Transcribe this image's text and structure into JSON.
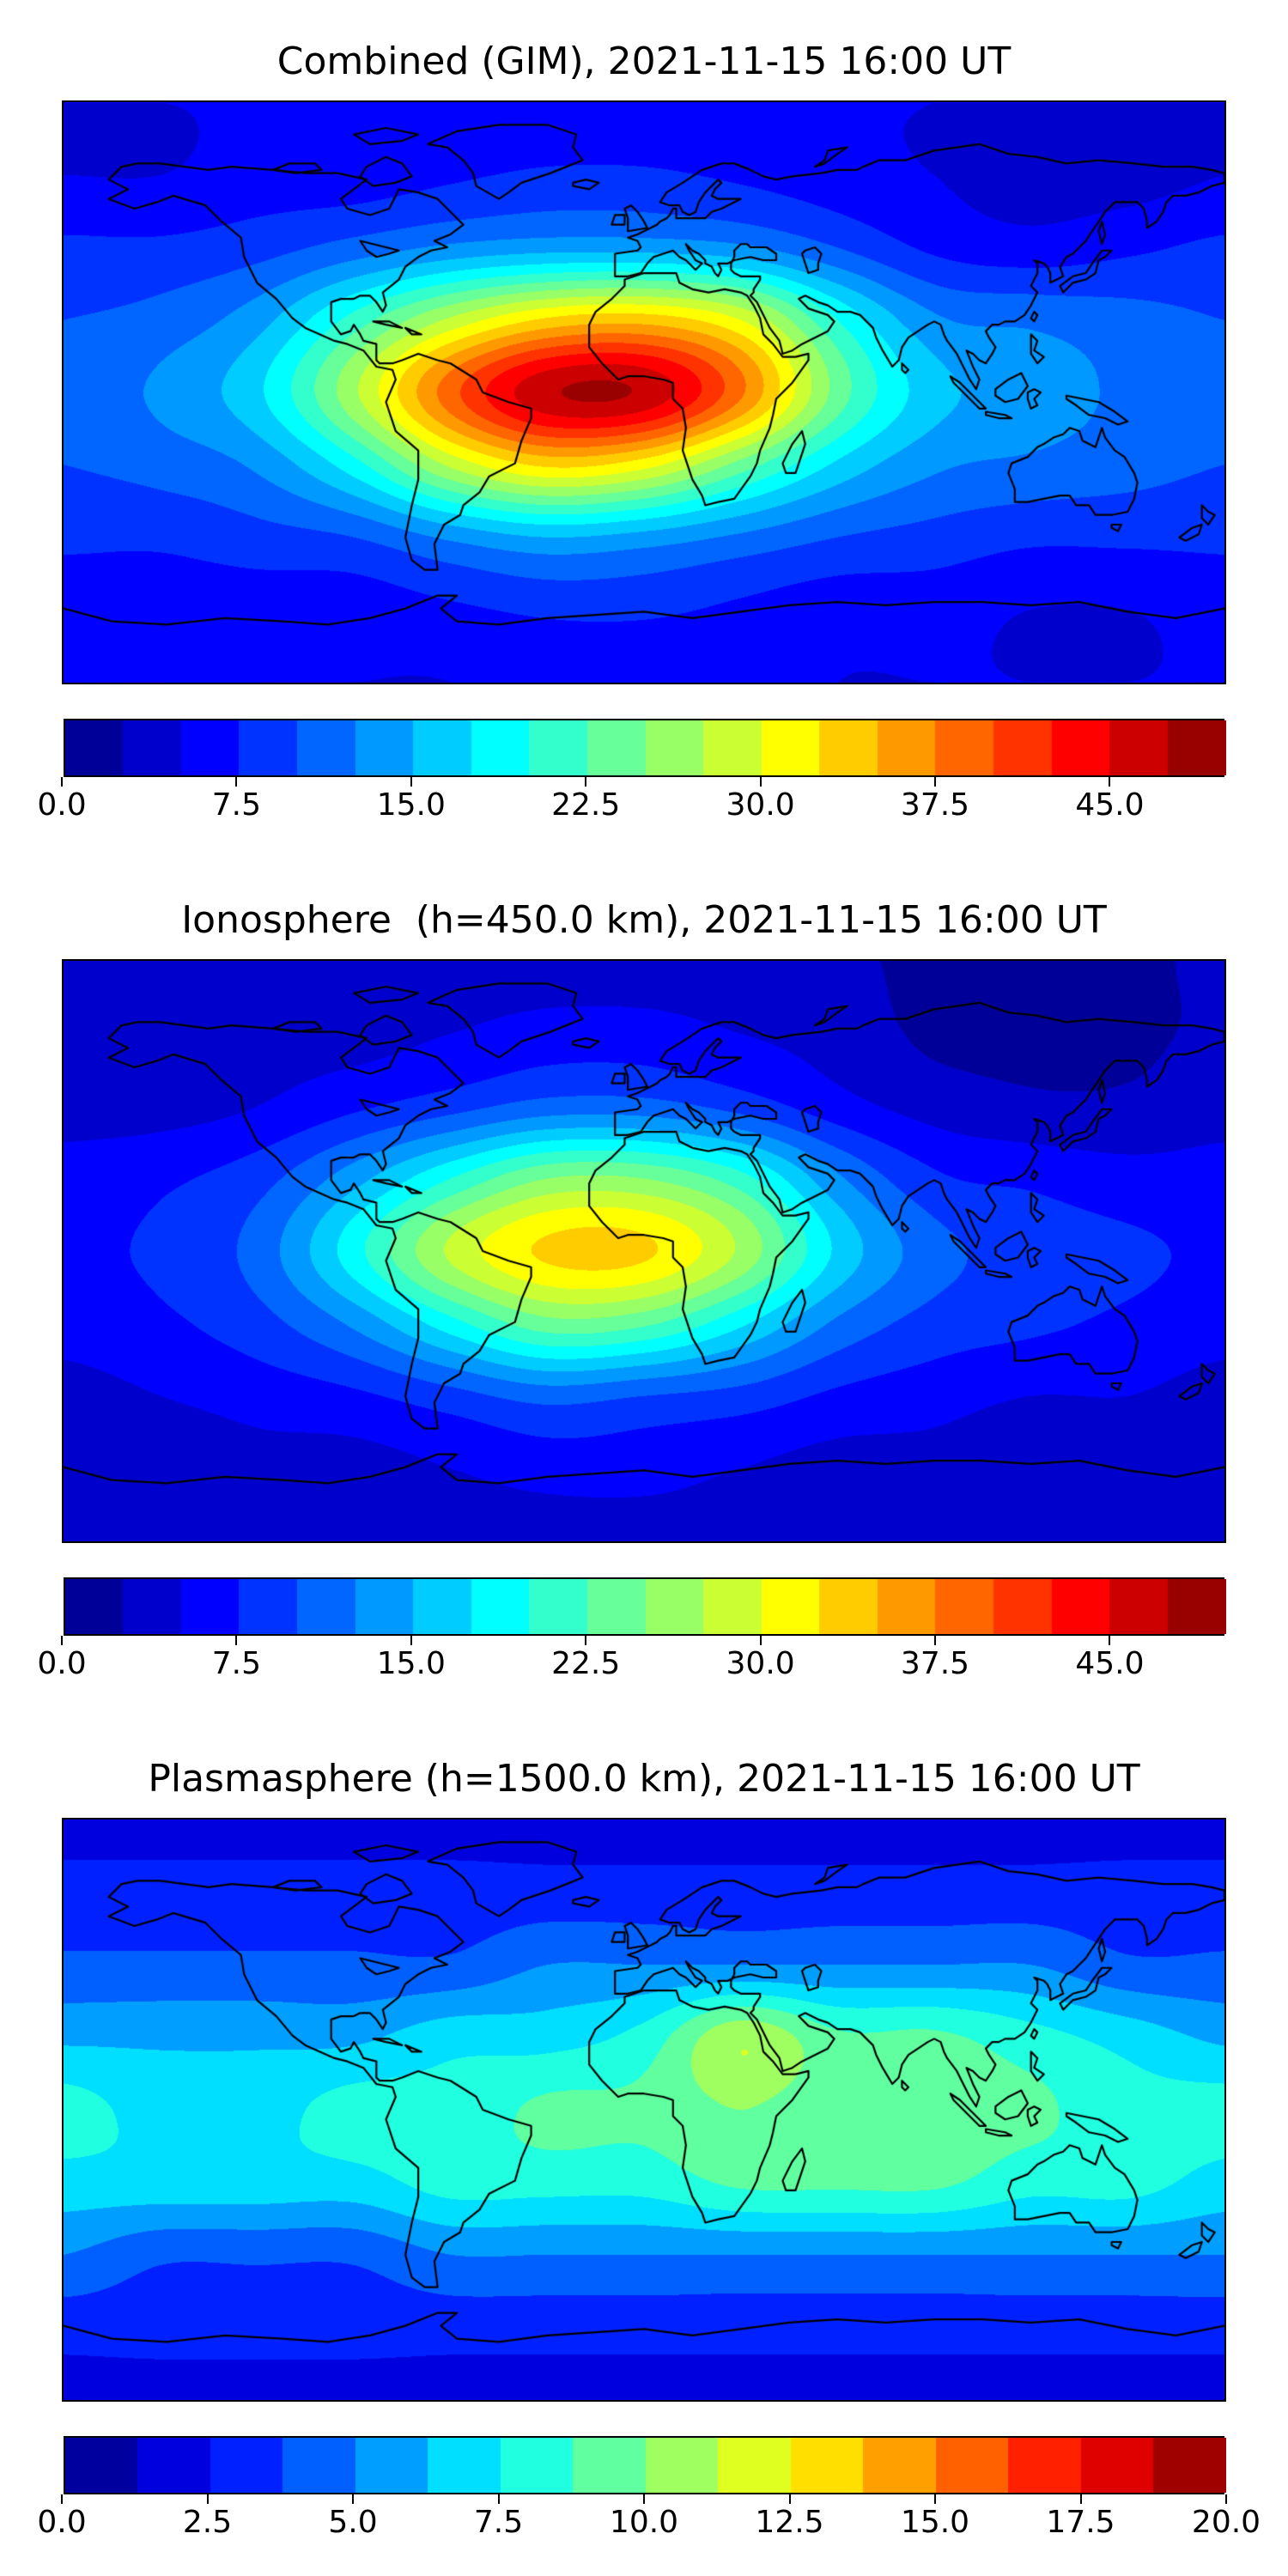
{
  "figure": {
    "background": "#ffffff",
    "text_color": "#000000",
    "coastline_color": "#000000"
  },
  "chart_data": [
    {
      "type": "heatmap",
      "title": "Combined (GIM), 2021-11-15 16:00 UT",
      "projection": "equirectangular world map",
      "x_range": [
        -180,
        180
      ],
      "y_range": [
        -90,
        90
      ],
      "colormap": "jet",
      "vmin": 0,
      "vmax": 50,
      "n_levels": 20,
      "colorbar_tick_values": [
        0,
        7.5,
        15,
        22.5,
        30,
        37.5,
        45
      ],
      "colorbar_tick_labels": [
        "0.0",
        "7.5",
        "15.0",
        "22.5",
        "30.0",
        "37.5",
        "45.0"
      ],
      "grid_lons": [
        -180,
        -150,
        -120,
        -90,
        -60,
        -30,
        0,
        30,
        60,
        90,
        120,
        150,
        180
      ],
      "grid_lats": [
        90,
        67.5,
        45,
        22.5,
        0,
        -22.5,
        -45,
        -67.5,
        -90
      ],
      "values": [
        [
          5,
          5,
          5,
          5,
          5,
          5,
          5,
          5,
          5,
          5,
          5,
          5,
          5
        ],
        [
          5,
          5,
          6,
          6,
          7,
          8,
          8,
          7,
          6,
          5,
          4,
          4,
          5
        ],
        [
          8,
          8,
          9,
          11,
          13,
          14,
          14,
          13,
          10,
          7,
          6,
          7,
          8
        ],
        [
          10,
          11,
          14,
          21,
          28,
          33,
          34,
          30,
          20,
          13,
          12,
          11,
          10
        ],
        [
          11,
          13,
          17,
          27,
          39,
          47,
          47,
          38,
          24,
          16,
          14,
          12,
          11
        ],
        [
          10,
          11,
          13,
          19,
          28,
          33,
          31,
          24,
          17,
          13,
          12,
          11,
          10
        ],
        [
          8,
          8,
          9,
          10,
          13,
          15,
          14,
          12,
          10,
          9,
          8,
          8,
          8
        ],
        [
          6,
          6,
          6,
          6,
          7,
          8,
          8,
          7,
          6,
          6,
          5,
          5,
          6
        ],
        [
          5,
          5,
          5,
          5,
          5,
          6,
          6,
          6,
          5,
          5,
          5,
          5,
          5
        ]
      ]
    },
    {
      "type": "heatmap",
      "title": "Ionosphere  (h=450.0 km), 2021-11-15 16:00 UT",
      "projection": "equirectangular world map",
      "x_range": [
        -180,
        180
      ],
      "y_range": [
        -90,
        90
      ],
      "colormap": "jet",
      "vmin": 0,
      "vmax": 50,
      "n_levels": 20,
      "colorbar_tick_values": [
        0,
        7.5,
        15,
        22.5,
        30,
        37.5,
        45
      ],
      "colorbar_tick_labels": [
        "0.0",
        "7.5",
        "15.0",
        "22.5",
        "30.0",
        "37.5",
        "45.0"
      ],
      "grid_lons": [
        -180,
        -150,
        -120,
        -90,
        -60,
        -30,
        0,
        30,
        60,
        90,
        120,
        150,
        180
      ],
      "grid_lats": [
        90,
        67.5,
        45,
        22.5,
        0,
        -22.5,
        -45,
        -67.5,
        -90
      ],
      "values": [
        [
          3,
          3,
          3,
          3,
          4,
          4,
          4,
          4,
          3,
          2,
          2,
          2,
          3
        ],
        [
          3,
          3,
          4,
          4,
          5,
          6,
          6,
          5,
          4,
          2,
          2,
          2,
          3
        ],
        [
          4,
          4,
          5,
          7,
          9,
          11,
          11,
          9,
          6,
          4,
          3,
          3,
          4
        ],
        [
          6,
          7,
          9,
          14,
          20,
          25,
          25,
          21,
          13,
          8,
          7,
          6,
          6
        ],
        [
          7,
          8,
          11,
          19,
          28,
          33,
          33,
          27,
          17,
          11,
          9,
          8,
          7
        ],
        [
          6,
          7,
          9,
          13,
          19,
          24,
          23,
          18,
          12,
          9,
          8,
          7,
          6
        ],
        [
          4,
          5,
          6,
          7,
          9,
          11,
          10,
          9,
          7,
          6,
          5,
          5,
          4
        ],
        [
          3,
          3,
          4,
          4,
          5,
          6,
          6,
          5,
          4,
          4,
          3,
          3,
          3
        ],
        [
          3,
          3,
          3,
          3,
          4,
          4,
          4,
          4,
          3,
          3,
          3,
          3,
          3
        ]
      ]
    },
    {
      "type": "heatmap",
      "title": "Plasmasphere (h=1500.0 km), 2021-11-15 16:00 UT",
      "projection": "equirectangular world map",
      "x_range": [
        -180,
        180
      ],
      "y_range": [
        -90,
        90
      ],
      "colormap": "jet",
      "vmin": 0,
      "vmax": 20,
      "n_levels": 16,
      "colorbar_tick_values": [
        0,
        2.5,
        5,
        7.5,
        10,
        12.5,
        15,
        17.5,
        20
      ],
      "colorbar_tick_labels": [
        "0.0",
        "2.5",
        "5.0",
        "7.5",
        "10.0",
        "12.5",
        "15.0",
        "17.5",
        "20.0"
      ],
      "grid_lons": [
        -180,
        -150,
        -120,
        -90,
        -60,
        -30,
        0,
        30,
        60,
        90,
        120,
        150,
        180
      ],
      "grid_lats": [
        90,
        67.5,
        45,
        22.5,
        0,
        -22.5,
        -45,
        -67.5,
        -90
      ],
      "values": [
        [
          2,
          2,
          2,
          2,
          2,
          2,
          2,
          2,
          2,
          2,
          2,
          2,
          2
        ],
        [
          3,
          3,
          3,
          3,
          3,
          3,
          3,
          3,
          3,
          3,
          3,
          3,
          3
        ],
        [
          4,
          4,
          4,
          4,
          4,
          5,
          5,
          5,
          5,
          5,
          5,
          4,
          4
        ],
        [
          6,
          6,
          6,
          6,
          7,
          7,
          8,
          11,
          9,
          9,
          8,
          7,
          6
        ],
        [
          8,
          7,
          7,
          8,
          8,
          9,
          9,
          10,
          9,
          9,
          9,
          8,
          8
        ],
        [
          7,
          7,
          7,
          7,
          8,
          8,
          8,
          9,
          9,
          9,
          8,
          8,
          7
        ],
        [
          5,
          4,
          4,
          4,
          5,
          5,
          5,
          5,
          5,
          5,
          5,
          5,
          5
        ],
        [
          3,
          3,
          3,
          3,
          3,
          3,
          3,
          3,
          3,
          3,
          3,
          3,
          3
        ],
        [
          2,
          2,
          2,
          2,
          2,
          2,
          2,
          2,
          2,
          2,
          2,
          2,
          2
        ]
      ]
    }
  ]
}
